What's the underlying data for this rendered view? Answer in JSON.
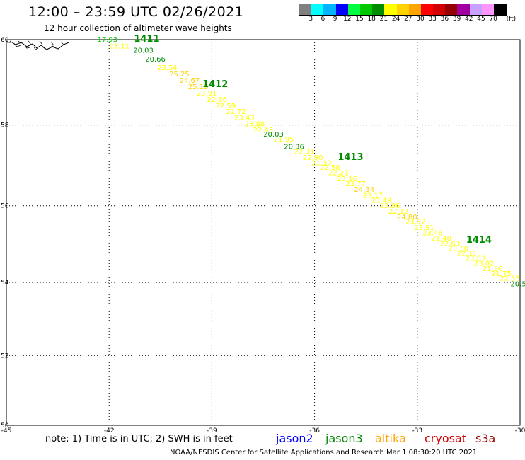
{
  "header": {
    "title": "12:00 – 23:59 UTC 02/26/2021",
    "subtitle": "12 hour collection of altimeter wave heights"
  },
  "legend": {
    "unit": "(ft)",
    "colors": [
      "#808080",
      "#00ffff",
      "#00b4ff",
      "#0000ff",
      "#00ff40",
      "#00c800",
      "#008c00",
      "#ffff00",
      "#ffd200",
      "#ffa500",
      "#ff0000",
      "#d20000",
      "#960000",
      "#a000a0",
      "#c8a0ff",
      "#ff96ff",
      "#000000"
    ],
    "labels": [
      "3",
      "6",
      "9",
      "12",
      "15",
      "18",
      "21",
      "24",
      "27",
      "30",
      "33",
      "36",
      "39",
      "42",
      "45",
      "70"
    ]
  },
  "axes": {
    "x_ticks": [
      "-45",
      "-42",
      "-39",
      "-36",
      "-33",
      "-30"
    ],
    "y_ticks": [
      "60",
      "58",
      "56",
      "54",
      "52",
      "50"
    ]
  },
  "chart_data": {
    "type": "scatter",
    "xlim": [
      -45,
      -30
    ],
    "ylim": [
      50,
      60
    ],
    "grid": true,
    "pass_labels": [
      {
        "text": "1411",
        "lon": -40.9,
        "lat": 59.95,
        "color": "#008c00"
      },
      {
        "text": "1412",
        "lon": -38.9,
        "lat": 58.9,
        "color": "#008c00"
      },
      {
        "text": "1413",
        "lon": -34.95,
        "lat": 57.15,
        "color": "#008c00"
      },
      {
        "text": "1414",
        "lon": -31.2,
        "lat": 55.05,
        "color": "#008c00"
      }
    ],
    "points": [
      {
        "v": "17.93",
        "lon": -42.05,
        "lat": 59.95,
        "color": "#00c800"
      },
      {
        "v": "23.11",
        "lon": -41.7,
        "lat": 59.8,
        "color": "#ffff00"
      },
      {
        "v": "20.03",
        "lon": -41.0,
        "lat": 59.7,
        "color": "#008c00"
      },
      {
        "v": "20.66",
        "lon": -40.65,
        "lat": 59.5,
        "color": "#008c00"
      },
      {
        "v": "23.54",
        "lon": -40.3,
        "lat": 59.3,
        "color": "#ffff00"
      },
      {
        "v": "25.25",
        "lon": -39.95,
        "lat": 59.15,
        "color": "#ffd200"
      },
      {
        "v": "24.67",
        "lon": -39.65,
        "lat": 59.0,
        "color": "#ffd200"
      },
      {
        "v": "25.19",
        "lon": -39.4,
        "lat": 58.85,
        "color": "#ffd200"
      },
      {
        "v": "23.91",
        "lon": -39.15,
        "lat": 58.7,
        "color": "#ffff00"
      },
      {
        "v": "22.86",
        "lon": -38.85,
        "lat": 58.55,
        "color": "#ffff00"
      },
      {
        "v": "22.59",
        "lon": -38.6,
        "lat": 58.4,
        "color": "#ffff00"
      },
      {
        "v": "22.72",
        "lon": -38.3,
        "lat": 58.27,
        "color": "#ffff00"
      },
      {
        "v": "23.43",
        "lon": -38.05,
        "lat": 58.12,
        "color": "#ffff00"
      },
      {
        "v": "23.88",
        "lon": -37.75,
        "lat": 57.97,
        "color": "#ffff00"
      },
      {
        "v": "22.45",
        "lon": -37.5,
        "lat": 57.82,
        "color": "#ffff00"
      },
      {
        "v": "20.03",
        "lon": -37.2,
        "lat": 57.72,
        "color": "#008c00"
      },
      {
        "v": "21.95",
        "lon": -36.9,
        "lat": 57.6,
        "color": "#ffff00"
      },
      {
        "v": "20.36",
        "lon": -36.6,
        "lat": 57.42,
        "color": "#008c00"
      },
      {
        "v": "22.31",
        "lon": -36.3,
        "lat": 57.3,
        "color": "#ffff00"
      },
      {
        "v": "22.90",
        "lon": -36.05,
        "lat": 57.15,
        "color": "#ffff00"
      },
      {
        "v": "21.39",
        "lon": -35.8,
        "lat": 57.02,
        "color": "#ffff00"
      },
      {
        "v": "22.58",
        "lon": -35.55,
        "lat": 56.9,
        "color": "#ffff00"
      },
      {
        "v": "22.21",
        "lon": -35.3,
        "lat": 56.77,
        "color": "#ffff00"
      },
      {
        "v": "23.16",
        "lon": -35.05,
        "lat": 56.62,
        "color": "#ffff00"
      },
      {
        "v": "23.77",
        "lon": -34.8,
        "lat": 56.5,
        "color": "#ffff00"
      },
      {
        "v": "24.34",
        "lon": -34.55,
        "lat": 56.35,
        "color": "#ffd200"
      },
      {
        "v": "23.17",
        "lon": -34.3,
        "lat": 56.2,
        "color": "#ffff00"
      },
      {
        "v": "23.49",
        "lon": -34.05,
        "lat": 56.08,
        "color": "#ffff00"
      },
      {
        "v": "23.86",
        "lon": -33.8,
        "lat": 55.94,
        "color": "#ffff00"
      },
      {
        "v": "22.12",
        "lon": -33.55,
        "lat": 55.8,
        "color": "#ffff00"
      },
      {
        "v": "24.80",
        "lon": -33.3,
        "lat": 55.65,
        "color": "#ffd200"
      },
      {
        "v": "23.32",
        "lon": -33.05,
        "lat": 55.53,
        "color": "#ffff00"
      },
      {
        "v": "23.91",
        "lon": -32.8,
        "lat": 55.38,
        "color": "#ffff00"
      },
      {
        "v": "23.46",
        "lon": -32.55,
        "lat": 55.24,
        "color": "#ffff00"
      },
      {
        "v": "21.48",
        "lon": -32.3,
        "lat": 55.1,
        "color": "#ffff00"
      },
      {
        "v": "22.63",
        "lon": -32.05,
        "lat": 54.96,
        "color": "#ffff00"
      },
      {
        "v": "23.50",
        "lon": -31.8,
        "lat": 54.83,
        "color": "#ffff00"
      },
      {
        "v": "22.11",
        "lon": -31.55,
        "lat": 54.7,
        "color": "#ffff00"
      },
      {
        "v": "23.03",
        "lon": -31.3,
        "lat": 54.57,
        "color": "#ffff00"
      },
      {
        "v": "23.02",
        "lon": -31.05,
        "lat": 54.44,
        "color": "#ffff00"
      },
      {
        "v": "21.36",
        "lon": -30.8,
        "lat": 54.3,
        "color": "#ffff00"
      },
      {
        "v": "21.75",
        "lon": -30.55,
        "lat": 54.17,
        "color": "#ffff00"
      },
      {
        "v": "22.35",
        "lon": -30.3,
        "lat": 54.05,
        "color": "#ffff00"
      },
      {
        "v": "20.5",
        "lon": -30.05,
        "lat": 53.9,
        "color": "#008c00"
      }
    ]
  },
  "footer": {
    "note": "note: 1) Time is in UTC; 2) SWH is in feet",
    "satellites": [
      {
        "name": "jason2",
        "color": "#0000ff"
      },
      {
        "name": "jason3",
        "color": "#008c00"
      },
      {
        "name": "altika",
        "color": "#ffa500"
      },
      {
        "name": "cryosat",
        "color": "#d20000"
      },
      {
        "name": "s3a",
        "color": "#960000"
      }
    ],
    "credit": "NOAA/NESDIS Center for Satellite Applications and Research    Mar  1 08:30:20 UTC 2021"
  }
}
